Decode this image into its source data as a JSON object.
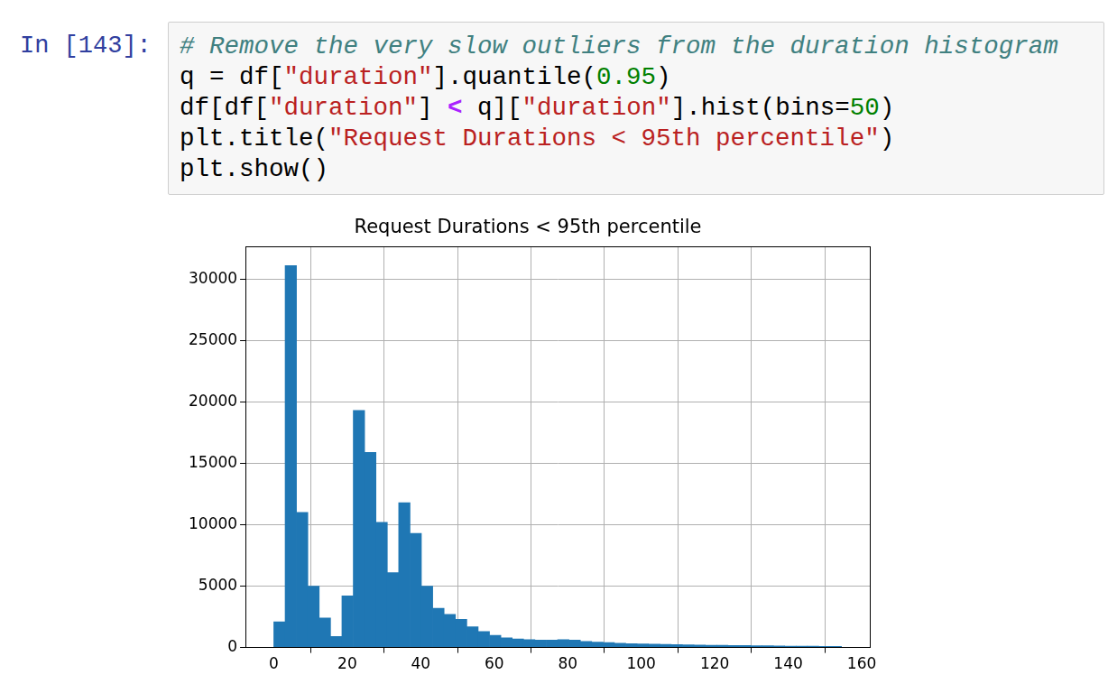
{
  "notebook": {
    "prompt": "In [143]:",
    "code": [
      "# Remove the very slow outliers from the duration histogram",
      "q = df[\"duration\"].quantile(0.95)",
      "df[df[\"duration\"] < q][\"duration\"].hist(bins=50)",
      "plt.title(\"Request Durations < 95th percentile\")",
      "plt.show()"
    ]
  },
  "chart_data": {
    "type": "histogram",
    "title": "Request Durations < 95th percentile",
    "bins": [
      0,
      3.09,
      6.18,
      9.27,
      12.36,
      15.45,
      18.54,
      21.63,
      24.72,
      27.81,
      30.9,
      33.99,
      37.08,
      40.17,
      43.26,
      46.35,
      49.44,
      52.53,
      55.62,
      58.71,
      61.8,
      64.89,
      67.98,
      71.07,
      74.16,
      77.25,
      80.34,
      83.43,
      86.52,
      89.61,
      92.7,
      95.79,
      98.88,
      101.97,
      105.06,
      108.15,
      111.24,
      114.33,
      117.42,
      120.51,
      123.6,
      126.69,
      129.78,
      132.87,
      135.96,
      139.05,
      142.14,
      145.23,
      148.32,
      151.41,
      154.5
    ],
    "values": [
      2100,
      31100,
      11000,
      5000,
      2400,
      900,
      4200,
      19300,
      15900,
      10200,
      6100,
      11800,
      9300,
      5000,
      3200,
      2700,
      2300,
      1700,
      1300,
      1000,
      800,
      700,
      650,
      600,
      600,
      650,
      600,
      500,
      450,
      400,
      350,
      320,
      300,
      280,
      260,
      240,
      220,
      200,
      190,
      180,
      170,
      160,
      150,
      140,
      130,
      120,
      115,
      110,
      100,
      100
    ],
    "color": "#1f77b4",
    "xlim": [
      -7.7,
      162.2
    ],
    "xticks": [
      0,
      20,
      40,
      60,
      80,
      100,
      120,
      140,
      160
    ],
    "ylim": [
      0,
      32655
    ],
    "yticks": [
      0,
      5000,
      10000,
      15000,
      20000,
      25000,
      30000
    ],
    "grid": true
  }
}
